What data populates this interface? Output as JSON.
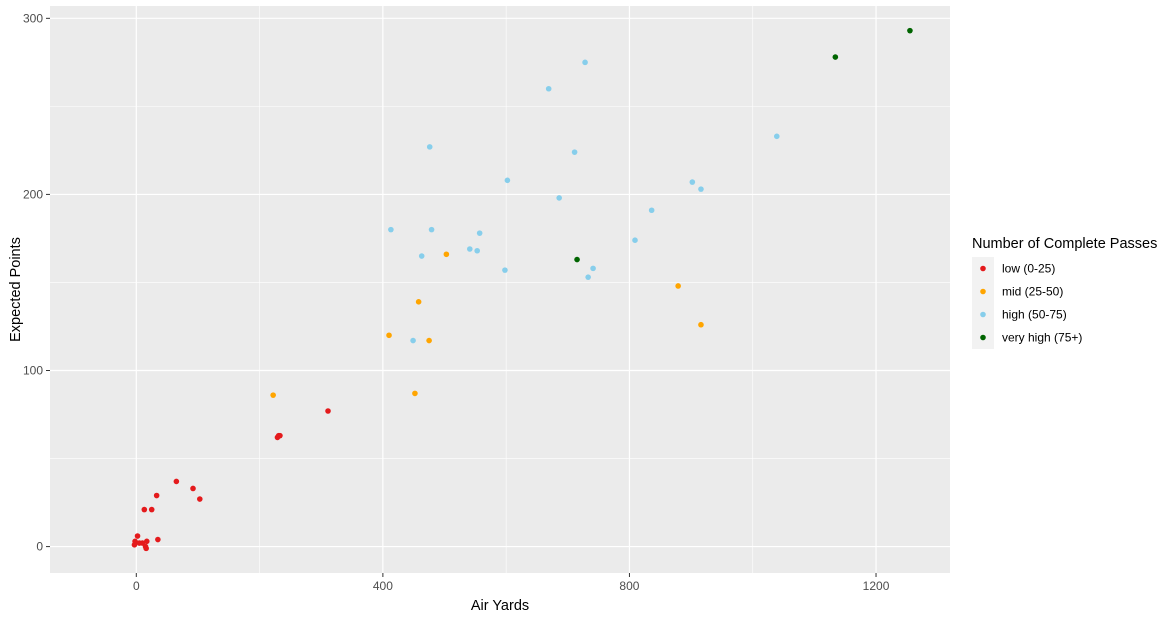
{
  "chart_data": {
    "type": "scatter",
    "title": "",
    "xlabel": "Air Yards",
    "ylabel": "Expected Points",
    "xlim": [
      -140,
      1320
    ],
    "ylim": [
      -15,
      307
    ],
    "x_ticks": [
      0,
      400,
      800,
      1200
    ],
    "y_ticks": [
      0,
      100,
      200,
      300
    ],
    "x_minor": [
      200,
      600,
      1000
    ],
    "y_minor": [
      50,
      150,
      250
    ],
    "grid": true,
    "background": "#ebebeb",
    "legend": {
      "title": "Number of Complete Passes",
      "placement": "right",
      "entries": [
        {
          "label": "low (0-25)",
          "color": "#e41a1c"
        },
        {
          "label": "mid (25-50)",
          "color": "#ffa500"
        },
        {
          "label": "high (50-75)",
          "color": "#87ceeb"
        },
        {
          "label": "very high (75+)",
          "color": "#006400"
        }
      ]
    },
    "series": [
      {
        "name": "low (0-25)",
        "color": "#e41a1c",
        "points": [
          [
            -3,
            1
          ],
          [
            -2,
            3
          ],
          [
            2,
            6
          ],
          [
            5,
            2
          ],
          [
            10,
            2
          ],
          [
            13,
            21
          ],
          [
            15,
            0
          ],
          [
            16,
            -1
          ],
          [
            17,
            3
          ],
          [
            25,
            21
          ],
          [
            33,
            29
          ],
          [
            35,
            4
          ],
          [
            65,
            37
          ],
          [
            92,
            33
          ],
          [
            103,
            27
          ],
          [
            229,
            62
          ],
          [
            231,
            63
          ],
          [
            233,
            63
          ],
          [
            311,
            77
          ]
        ]
      },
      {
        "name": "mid (25-50)",
        "color": "#ffa500",
        "points": [
          [
            222,
            86
          ],
          [
            410,
            120
          ],
          [
            452,
            87
          ],
          [
            458,
            139
          ],
          [
            475,
            117
          ],
          [
            503,
            166
          ],
          [
            879,
            148
          ],
          [
            916,
            126
          ]
        ]
      },
      {
        "name": "high (50-75)",
        "color": "#87ceeb",
        "points": [
          [
            413,
            180
          ],
          [
            449,
            117
          ],
          [
            463,
            165
          ],
          [
            476,
            227
          ],
          [
            479,
            180
          ],
          [
            541,
            169
          ],
          [
            553,
            168
          ],
          [
            557,
            178
          ],
          [
            598,
            157
          ],
          [
            602,
            208
          ],
          [
            669,
            260
          ],
          [
            686,
            198
          ],
          [
            711,
            224
          ],
          [
            728,
            275
          ],
          [
            733,
            153
          ],
          [
            741,
            158
          ],
          [
            809,
            174
          ],
          [
            836,
            191
          ],
          [
            902,
            207
          ],
          [
            916,
            203
          ],
          [
            1039,
            233
          ]
        ]
      },
      {
        "name": "very high (75+)",
        "color": "#006400",
        "points": [
          [
            715,
            163
          ],
          [
            1134,
            278
          ],
          [
            1255,
            293
          ]
        ]
      }
    ]
  }
}
